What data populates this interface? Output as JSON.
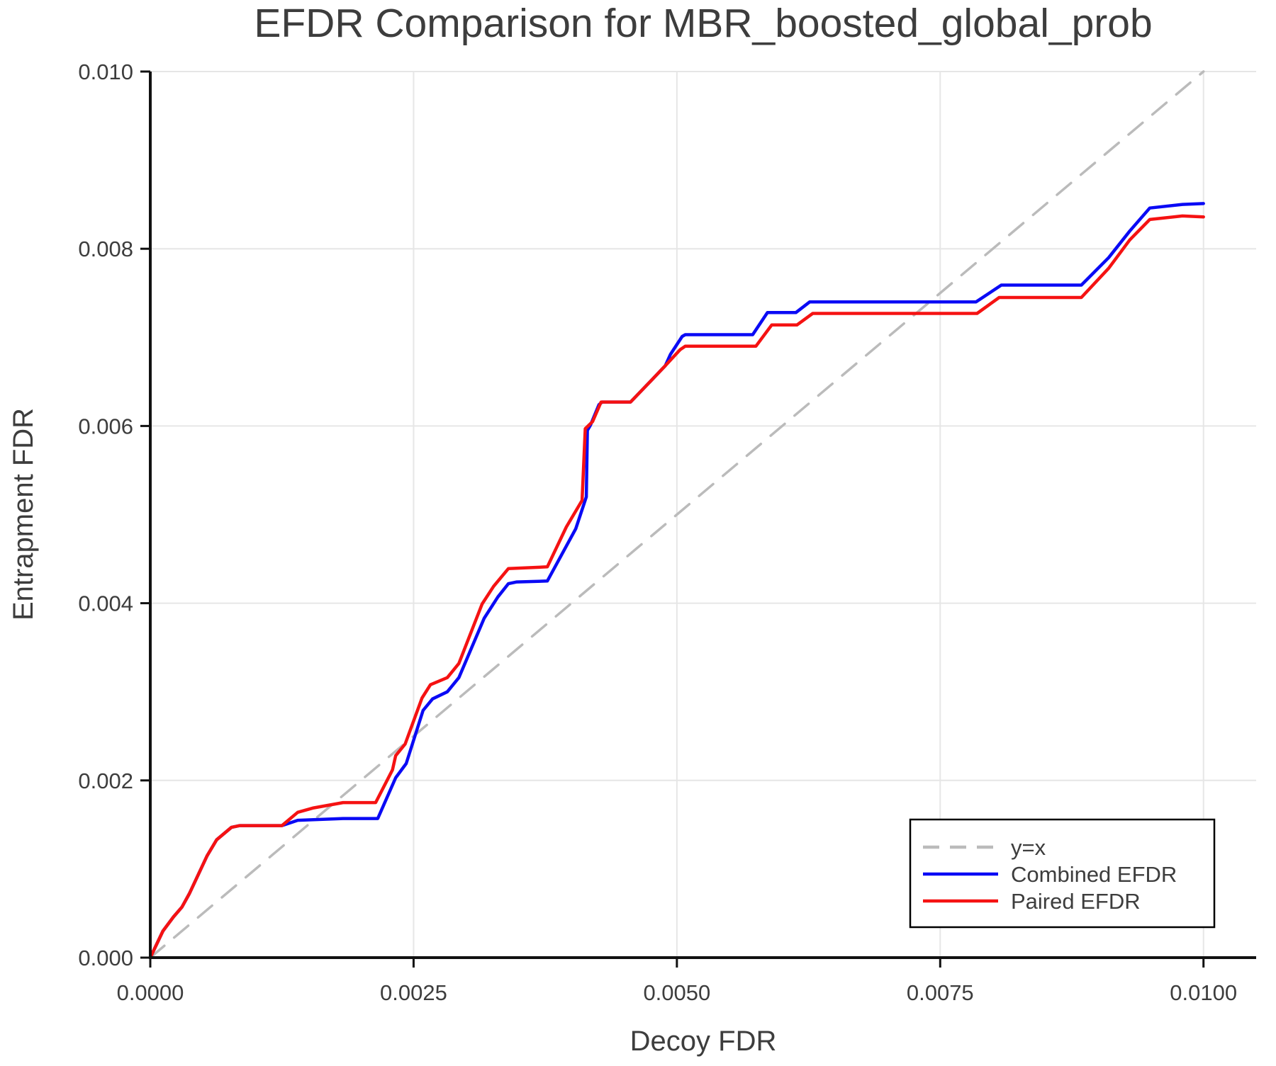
{
  "chart_data": {
    "type": "line",
    "title": "EFDR Comparison for MBR_boosted_global_prob",
    "xlabel": "Decoy FDR",
    "ylabel": "Entrapment FDR",
    "xlim": [
      0,
      0.0105
    ],
    "ylim": [
      0,
      0.01
    ],
    "grid": true,
    "legend_position": "lower right",
    "x_ticks": {
      "values": [
        0.0,
        0.0025,
        0.005,
        0.0075,
        0.01
      ],
      "labels": [
        "0.0000",
        "0.0025",
        "0.0050",
        "0.0075",
        "0.0100"
      ]
    },
    "y_ticks": {
      "values": [
        0.0,
        0.002,
        0.004,
        0.006,
        0.008,
        0.01
      ],
      "labels": [
        "0.000",
        "0.002",
        "0.004",
        "0.006",
        "0.008",
        "0.010"
      ]
    },
    "colors": {
      "grid": "#e6e6e6",
      "spine": "#111111",
      "text": "#3d3d3d",
      "diagonal": "#bbbbbb",
      "combined": "#0a0af5",
      "paired": "#f51212",
      "legend_border": "#000000",
      "legend_bg": "#ffffff"
    },
    "series": [
      {
        "name": "y=x",
        "color_key": "diagonal",
        "dashed": true,
        "points": [
          [
            0,
            0
          ],
          [
            0.01,
            0.01
          ]
        ]
      },
      {
        "name": "Combined EFDR",
        "color_key": "combined",
        "dashed": false,
        "points": [
          [
            0,
            0
          ],
          [
            0.00012,
            0.0003
          ],
          [
            0.00022,
            0.00046
          ],
          [
            0.0003,
            0.00057
          ],
          [
            0.00037,
            0.00072
          ],
          [
            0.00054,
            0.00115
          ],
          [
            0.00063,
            0.00133
          ],
          [
            0.00077,
            0.00147
          ],
          [
            0.00085,
            0.00149
          ],
          [
            0.00125,
            0.00149
          ],
          [
            0.0014,
            0.00155
          ],
          [
            0.00183,
            0.00157
          ],
          [
            0.00216,
            0.00157
          ],
          [
            0.00233,
            0.00203
          ],
          [
            0.00243,
            0.00219
          ],
          [
            0.00259,
            0.00279
          ],
          [
            0.00268,
            0.00292
          ],
          [
            0.00282,
            0.003
          ],
          [
            0.00293,
            0.00316
          ],
          [
            0.00317,
            0.00383
          ],
          [
            0.0033,
            0.00407
          ],
          [
            0.0034,
            0.00422
          ],
          [
            0.00348,
            0.00424
          ],
          [
            0.00377,
            0.00425
          ],
          [
            0.00404,
            0.00484
          ],
          [
            0.00414,
            0.0052
          ],
          [
            0.00415,
            0.00595
          ],
          [
            0.00418,
            0.00601
          ],
          [
            0.00426,
            0.00624
          ],
          [
            0.00429,
            0.00627
          ],
          [
            0.00456,
            0.00627
          ],
          [
            0.00477,
            0.00653
          ],
          [
            0.00489,
            0.00668
          ],
          [
            0.00494,
            0.00681
          ],
          [
            0.00505,
            0.00701
          ],
          [
            0.00508,
            0.00703
          ],
          [
            0.00572,
            0.00703
          ],
          [
            0.00586,
            0.00728
          ],
          [
            0.00613,
            0.00728
          ],
          [
            0.00626,
            0.0074
          ],
          [
            0.00784,
            0.0074
          ],
          [
            0.00808,
            0.00759
          ],
          [
            0.00884,
            0.00759
          ],
          [
            0.0091,
            0.0079
          ],
          [
            0.0093,
            0.0082
          ],
          [
            0.00949,
            0.00846
          ],
          [
            0.0098,
            0.0085
          ],
          [
            0.01,
            0.00851
          ]
        ]
      },
      {
        "name": "Paired EFDR",
        "color_key": "paired",
        "dashed": false,
        "points": [
          [
            0,
            0
          ],
          [
            0.00012,
            0.0003
          ],
          [
            0.00022,
            0.00046
          ],
          [
            0.0003,
            0.00057
          ],
          [
            0.00037,
            0.00072
          ],
          [
            0.00054,
            0.00115
          ],
          [
            0.00063,
            0.00133
          ],
          [
            0.00077,
            0.00147
          ],
          [
            0.00085,
            0.00149
          ],
          [
            0.00125,
            0.00149
          ],
          [
            0.0014,
            0.00164
          ],
          [
            0.00155,
            0.00169
          ],
          [
            0.00183,
            0.00175
          ],
          [
            0.00214,
            0.00175
          ],
          [
            0.0023,
            0.00212
          ],
          [
            0.00233,
            0.00228
          ],
          [
            0.00242,
            0.00241
          ],
          [
            0.00258,
            0.00293
          ],
          [
            0.00266,
            0.00308
          ],
          [
            0.00282,
            0.00316
          ],
          [
            0.00293,
            0.00332
          ],
          [
            0.00315,
            0.00399
          ],
          [
            0.00326,
            0.00419
          ],
          [
            0.0034,
            0.00439
          ],
          [
            0.00377,
            0.00441
          ],
          [
            0.00395,
            0.00486
          ],
          [
            0.0041,
            0.00516
          ],
          [
            0.00413,
            0.00597
          ],
          [
            0.0042,
            0.00605
          ],
          [
            0.00428,
            0.00627
          ],
          [
            0.00456,
            0.00627
          ],
          [
            0.00477,
            0.00653
          ],
          [
            0.00489,
            0.00668
          ],
          [
            0.00503,
            0.00686
          ],
          [
            0.00508,
            0.0069
          ],
          [
            0.00575,
            0.0069
          ],
          [
            0.0059,
            0.00714
          ],
          [
            0.00614,
            0.00714
          ],
          [
            0.00629,
            0.00727
          ],
          [
            0.00785,
            0.00727
          ],
          [
            0.00806,
            0.00745
          ],
          [
            0.00884,
            0.00745
          ],
          [
            0.0091,
            0.00778
          ],
          [
            0.0093,
            0.0081
          ],
          [
            0.00949,
            0.00833
          ],
          [
            0.0098,
            0.00837
          ],
          [
            0.01,
            0.00836
          ]
        ]
      }
    ]
  }
}
